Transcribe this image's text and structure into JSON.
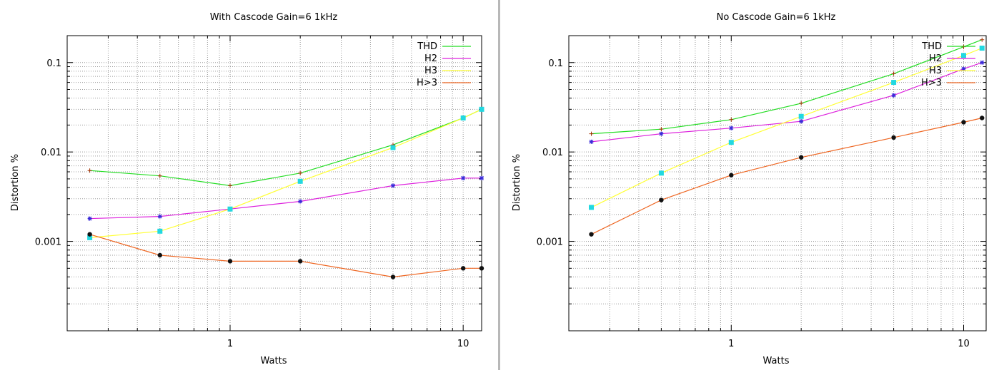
{
  "chart_data": [
    {
      "type": "line",
      "title": "With Cascode Gain=6 1kHz",
      "xlabel": "Watts",
      "ylabel": "Distortion %",
      "x_scale": "log",
      "y_scale": "log",
      "xlim": [
        0.2,
        12
      ],
      "ylim": [
        0.0001,
        0.2
      ],
      "grid": true,
      "legend_position": "top-right",
      "x_tick_labels": [
        {
          "value": 1,
          "label": "1"
        },
        {
          "value": 10,
          "label": "10"
        }
      ],
      "y_tick_labels": [
        {
          "value": 0.001,
          "label": "0.001"
        },
        {
          "value": 0.01,
          "label": "0.01"
        },
        {
          "value": 0.1,
          "label": "0.1"
        }
      ],
      "x": [
        0.25,
        0.5,
        1,
        2,
        5,
        10,
        12
      ],
      "series": [
        {
          "name": "THD",
          "color": "#22dd22",
          "marker": "plus",
          "values": [
            0.0062,
            0.0054,
            0.0042,
            0.0058,
            0.012,
            0.024,
            0.03
          ]
        },
        {
          "name": "H2",
          "color": "#dd22dd",
          "marker": "star",
          "values": [
            0.0018,
            0.0019,
            0.0023,
            0.0028,
            0.0042,
            0.0051,
            0.0051
          ]
        },
        {
          "name": "H3",
          "color": "#ffff33",
          "marker": "square",
          "values": [
            0.0011,
            0.0013,
            0.0023,
            0.0047,
            0.0112,
            0.024,
            0.03
          ]
        },
        {
          "name": "H>3",
          "color": "#ee6622",
          "marker": "circle",
          "values": [
            0.0012,
            0.0007,
            0.0006,
            0.0006,
            0.0004,
            0.0005,
            0.0005
          ]
        }
      ]
    },
    {
      "type": "line",
      "title": "No Cascode Gain=6 1kHz",
      "xlabel": "Watts",
      "ylabel": "Distortion %",
      "x_scale": "log",
      "y_scale": "log",
      "xlim": [
        0.2,
        12.5
      ],
      "ylim": [
        0.0001,
        0.2
      ],
      "grid": true,
      "legend_position": "top-right",
      "x_tick_labels": [
        {
          "value": 1,
          "label": "1"
        },
        {
          "value": 10,
          "label": "10"
        }
      ],
      "y_tick_labels": [
        {
          "value": 0.001,
          "label": "0.001"
        },
        {
          "value": 0.01,
          "label": "0.01"
        },
        {
          "value": 0.1,
          "label": "0.1"
        }
      ],
      "x": [
        0.25,
        0.5,
        1,
        2,
        5,
        10,
        12
      ],
      "series": [
        {
          "name": "THD",
          "color": "#22dd22",
          "marker": "plus",
          "values": [
            0.016,
            0.018,
            0.023,
            0.035,
            0.075,
            0.15,
            0.18
          ]
        },
        {
          "name": "H2",
          "color": "#dd22dd",
          "marker": "star",
          "values": [
            0.013,
            0.016,
            0.0185,
            0.022,
            0.043,
            0.085,
            0.1
          ]
        },
        {
          "name": "H3",
          "color": "#ffff33",
          "marker": "square",
          "values": [
            0.0024,
            0.0058,
            0.0128,
            0.025,
            0.06,
            0.12,
            0.145
          ]
        },
        {
          "name": "H>3",
          "color": "#ee6622",
          "marker": "circle",
          "values": [
            0.0012,
            0.0029,
            0.0055,
            0.0087,
            0.0145,
            0.0215,
            0.024
          ]
        }
      ]
    }
  ]
}
